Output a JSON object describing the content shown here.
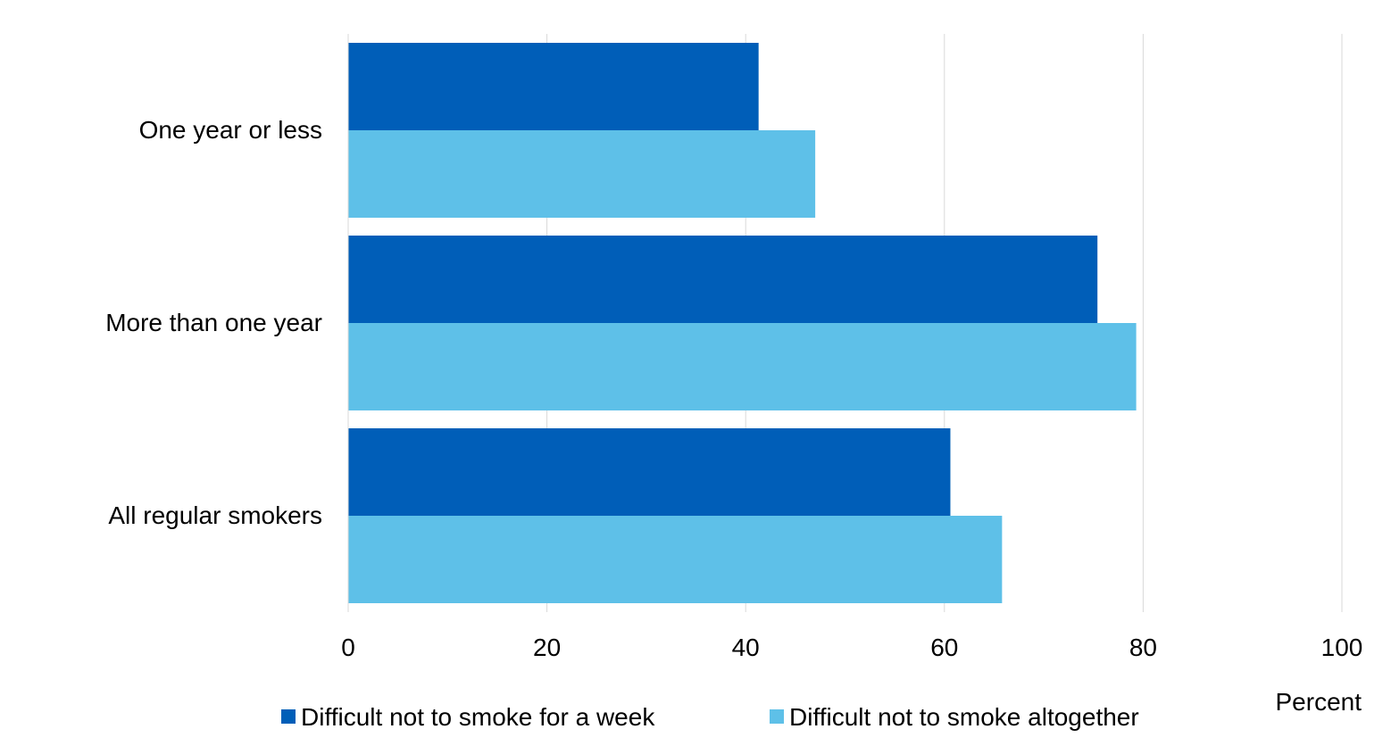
{
  "chart_data": {
    "type": "bar",
    "orientation": "horizontal",
    "categories": [
      "One year or less",
      "More than one year",
      "All regular smokers"
    ],
    "series": [
      {
        "name": "Difficult not to smoke for a week",
        "color": "#005eb8",
        "values": [
          41.3,
          75.4,
          60.6
        ]
      },
      {
        "name": "Difficult not to smoke altogether",
        "color": "#5ec0e8",
        "values": [
          47.0,
          79.3,
          65.8
        ]
      }
    ],
    "xlim": [
      0,
      100
    ],
    "xticks": [
      "0",
      "20",
      "40",
      "60",
      "80",
      "100"
    ],
    "xlabel": "Percent",
    "grid": "vertical",
    "legend_position": "bottom"
  }
}
